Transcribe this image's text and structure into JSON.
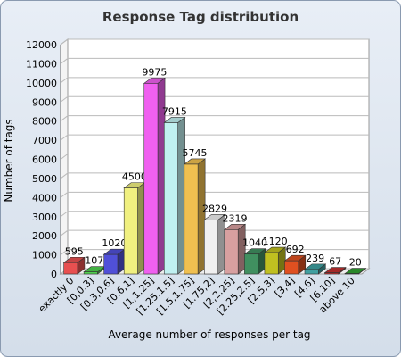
{
  "chart_data": {
    "type": "bar3d",
    "title": "Response Tag distribution",
    "x_label": "Average number of responses per tag",
    "y_label": "Number of tags",
    "categories": [
      "exactly 0",
      "[0,0.3]",
      "[0.3,0.6]",
      "[0.6,1]",
      "[1,1.25]",
      "[1.25,1.5]",
      "[1.5,1.75]",
      "[1.75,2]",
      "[2,2.25]",
      "[2.25,2.5]",
      "[2.5,3]",
      "[3,4]",
      "[4,6]",
      "[6,10]",
      "above 10"
    ],
    "values": [
      595,
      107,
      1020,
      4500,
      9975,
      7915,
      5745,
      2829,
      2319,
      1040,
      1120,
      692,
      239,
      67,
      20
    ],
    "colors": [
      "#e85050",
      "#50d050",
      "#5050d8",
      "#f0f080",
      "#f060f0",
      "#c0f0f0",
      "#f0c050",
      "#f0f0f0",
      "#d8a0a0",
      "#409060",
      "#c0c020",
      "#e05020",
      "#40a0a0",
      "#c03030",
      "#30a030"
    ],
    "ylim": [
      0,
      12000
    ],
    "yticks": [
      0,
      1000,
      2000,
      3000,
      4000,
      5000,
      6000,
      7000,
      8000,
      9000,
      10000,
      11000,
      12000
    ],
    "grid": true
  }
}
